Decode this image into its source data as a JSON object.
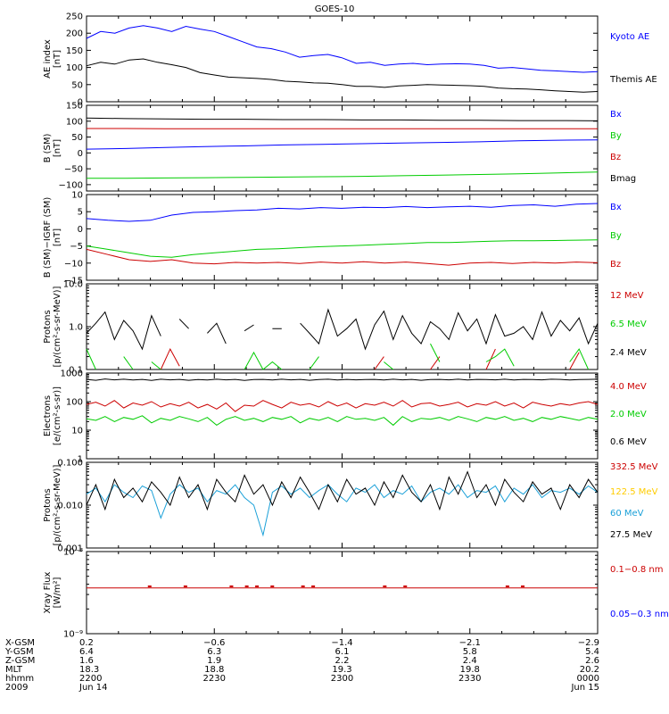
{
  "title": "GOES-10",
  "chart_data": [
    {
      "type": "line",
      "ylabel": [
        "AE index",
        "[nT]"
      ],
      "ylim": [
        0,
        250
      ],
      "yscale": "linear",
      "yticks": [
        0,
        50,
        100,
        150,
        200,
        250
      ],
      "ytick_labels": [
        "0",
        "50",
        "100",
        "150",
        "200",
        "250"
      ],
      "series": [
        {
          "name": "Kyoto AE",
          "color": "#0000ff",
          "values": [
            185,
            205,
            200,
            215,
            222,
            215,
            205,
            220,
            212,
            205,
            190,
            175,
            160,
            155,
            145,
            130,
            135,
            138,
            128,
            112,
            115,
            106,
            110,
            112,
            108,
            110,
            111,
            110,
            106,
            98,
            100,
            96,
            92,
            90,
            88,
            86,
            88
          ]
        },
        {
          "name": "Themis AE",
          "color": "#000000",
          "values": [
            105,
            115,
            110,
            122,
            125,
            115,
            108,
            100,
            85,
            78,
            72,
            70,
            68,
            65,
            60,
            58,
            55,
            54,
            50,
            45,
            45,
            42,
            46,
            48,
            50,
            49,
            48,
            47,
            45,
            40,
            38,
            37,
            35,
            32,
            30,
            28,
            30
          ]
        }
      ]
    },
    {
      "type": "line",
      "ylabel": [
        "B (SM)",
        "[nT]"
      ],
      "ylim": [
        -120,
        150
      ],
      "yscale": "linear",
      "yticks": [
        -100,
        -50,
        0,
        50,
        100,
        150
      ],
      "ytick_labels": [
        "−100",
        "−50",
        "0",
        "50",
        "100",
        "150"
      ],
      "series": [
        {
          "name": "Bx",
          "color": "#0000ff",
          "values": [
            12,
            14,
            17,
            20,
            22,
            25,
            27,
            29,
            31,
            33,
            35,
            38,
            40,
            41
          ]
        },
        {
          "name": "By",
          "color": "#00cc00",
          "values": [
            -80,
            -80,
            -79,
            -78,
            -77,
            -76,
            -75,
            -74,
            -72,
            -70,
            -68,
            -66,
            -63,
            -60
          ]
        },
        {
          "name": "Bz",
          "color": "#cc0000",
          "values": [
            77,
            77,
            76,
            76,
            76,
            76,
            76,
            76,
            76,
            76,
            76,
            76,
            76,
            76
          ]
        },
        {
          "name": "Bmag",
          "color": "#000000",
          "values": [
            110,
            108,
            107,
            106,
            106,
            105,
            105,
            104,
            104,
            103,
            103,
            102,
            102,
            101
          ]
        }
      ]
    },
    {
      "type": "line",
      "ylabel": [
        "B (SM)−IGRF (SM)",
        "[nT]"
      ],
      "ylim": [
        -15,
        10
      ],
      "yscale": "linear",
      "yticks": [
        -15,
        -10,
        -5,
        0,
        5,
        10
      ],
      "ytick_labels": [
        "−15",
        "−10",
        "−5",
        "0",
        "5",
        "10"
      ],
      "series": [
        {
          "name": "Bx",
          "color": "#0000ff",
          "values": [
            3,
            2.5,
            2.2,
            2.5,
            4,
            4.8,
            5,
            5.3,
            5.5,
            6,
            5.8,
            6.2,
            6,
            6.3,
            6.2,
            6.5,
            6.2,
            6.4,
            6.6,
            6.3,
            6.8,
            7,
            6.6,
            7.2,
            7.4
          ]
        },
        {
          "name": "By",
          "color": "#00cc00",
          "values": [
            -5,
            -6,
            -7,
            -8,
            -8.3,
            -7.5,
            -7,
            -6.5,
            -6,
            -5.8,
            -5.5,
            -5.2,
            -5,
            -4.8,
            -4.5,
            -4.3,
            -4,
            -4,
            -3.8,
            -3.6,
            -3.5,
            -3.5,
            -3.4,
            -3.3,
            -3.2
          ]
        },
        {
          "name": "Bz",
          "color": "#cc0000",
          "values": [
            -6,
            -7.5,
            -9,
            -9.5,
            -9,
            -10,
            -10.2,
            -9.8,
            -10,
            -9.8,
            -10.1,
            -9.7,
            -10,
            -9.6,
            -10,
            -9.7,
            -10.1,
            -10.6,
            -10,
            -9.8,
            -10.1,
            -9.8,
            -10,
            -9.7,
            -9.9
          ]
        }
      ]
    },
    {
      "type": "line",
      "ylabel": [
        "Protons",
        "[p/(cm²-s-sr-MeV)]"
      ],
      "ylim": [
        0.1,
        10
      ],
      "yscale": "log",
      "yticks": [
        0.1,
        1,
        10
      ],
      "ytick_labels": [
        "0.1",
        "1.0",
        "10.0"
      ],
      "series": [
        {
          "name": "12 MeV",
          "color": "#cc0000",
          "values": [
            null,
            null,
            null,
            null,
            null,
            null,
            null,
            null,
            0.1,
            0.3,
            0.12,
            null,
            null,
            null,
            null,
            null,
            null,
            null,
            null,
            null,
            null,
            null,
            null,
            null,
            null,
            null,
            null,
            null,
            null,
            null,
            null,
            0.1,
            0.2,
            null,
            null,
            null,
            null,
            0.1,
            0.2,
            null,
            null,
            null,
            null,
            0.1,
            0.3,
            null,
            null,
            null,
            null,
            null,
            null,
            null,
            0.1,
            0.25,
            null,
            null
          ]
        },
        {
          "name": "6.5 MeV",
          "color": "#00cc00",
          "values": [
            0.3,
            0.1,
            null,
            null,
            0.2,
            0.1,
            null,
            0.15,
            0.1,
            null,
            null,
            null,
            null,
            null,
            null,
            null,
            null,
            0.1,
            0.25,
            0.1,
            0.15,
            0.1,
            null,
            null,
            0.1,
            0.2,
            null,
            null,
            null,
            null,
            null,
            null,
            0.15,
            0.1,
            null,
            null,
            null,
            0.4,
            0.15,
            null,
            null,
            null,
            null,
            0.15,
            0.2,
            0.3,
            0.12,
            null,
            null,
            null,
            null,
            null,
            0.15,
            0.3,
            0.1,
            null
          ]
        },
        {
          "name": "2.4 MeV",
          "color": "#000000",
          "values": [
            0.7,
            1.2,
            2.2,
            0.5,
            1.4,
            0.8,
            0.3,
            1.8,
            0.6,
            null,
            1.5,
            0.9,
            null,
            0.7,
            1.2,
            0.4,
            null,
            0.8,
            1.1,
            null,
            0.9,
            0.9,
            null,
            1.2,
            0.7,
            0.4,
            2.5,
            0.6,
            0.9,
            1.5,
            0.3,
            1.1,
            2.3,
            0.5,
            1.8,
            0.7,
            0.4,
            1.3,
            0.9,
            0.5,
            2.1,
            0.8,
            1.5,
            0.4,
            1.9,
            0.6,
            0.7,
            1.0,
            0.5,
            2.2,
            0.6,
            1.4,
            0.8,
            1.6,
            0.4,
            1.2
          ]
        }
      ]
    },
    {
      "type": "line",
      "ylabel": [
        "Electrons",
        "[e/(cm²-s-sr)]"
      ],
      "ylim": [
        1,
        1000
      ],
      "yscale": "log",
      "yticks": [
        1,
        10,
        100,
        1000
      ],
      "ytick_labels": [
        "1",
        "10",
        "100",
        "1000"
      ],
      "series": [
        {
          "name": "4.0 MeV",
          "color": "#cc0000",
          "values": [
            80,
            95,
            70,
            110,
            60,
            90,
            75,
            100,
            65,
            85,
            70,
            95,
            60,
            80,
            55,
            90,
            45,
            75,
            70,
            110,
            80,
            60,
            95,
            75,
            85,
            65,
            100,
            70,
            90,
            60,
            85,
            75,
            95,
            70,
            110,
            65,
            85,
            90,
            70,
            80,
            95,
            65,
            85,
            75,
            100,
            70,
            90,
            60,
            95,
            80,
            70,
            85,
            75,
            90,
            100,
            80
          ]
        },
        {
          "name": "2.0 MeV",
          "color": "#00cc00",
          "values": [
            25,
            22,
            30,
            20,
            28,
            24,
            32,
            18,
            26,
            22,
            30,
            25,
            20,
            28,
            15,
            24,
            30,
            22,
            26,
            20,
            28,
            24,
            30,
            18,
            26,
            22,
            28,
            20,
            30,
            24,
            26,
            22,
            28,
            15,
            30,
            20,
            26,
            24,
            28,
            22,
            30,
            25,
            20,
            28,
            24,
            30,
            22,
            26,
            20,
            28,
            24,
            30,
            26,
            22,
            28,
            24
          ]
        },
        {
          "name": "0.6 MeV",
          "color": "#000000",
          "values": [
            600,
            560,
            620,
            580,
            610,
            570,
            600,
            550,
            610,
            580,
            600,
            560,
            590,
            570,
            610,
            580,
            600,
            550,
            590,
            600,
            570,
            610,
            580,
            600,
            560,
            590,
            610,
            570,
            600,
            580,
            590,
            600,
            570,
            610,
            580,
            600,
            560,
            590,
            600,
            580,
            610,
            570,
            600,
            590,
            580,
            610,
            570,
            600,
            590,
            580,
            610,
            600,
            570,
            590,
            600,
            610
          ]
        }
      ]
    },
    {
      "type": "line",
      "ylabel": [
        "Protons",
        "[p/(cm²-s-sr-MeV)]"
      ],
      "ylim": [
        0.001,
        0.1
      ],
      "yscale": "log",
      "yticks": [
        0.001,
        0.01,
        0.1
      ],
      "ytick_labels": [
        "0.001",
        "0.010",
        "0.100"
      ],
      "series": [
        {
          "name": "332.5 MeV",
          "color": "#cc0000",
          "values": []
        },
        {
          "name": "122.5 MeV",
          "color": "#ffcc00",
          "values": []
        },
        {
          "name": "60 MeV",
          "color": "#1aa0d8",
          "values": [
            0.018,
            0.025,
            0.012,
            0.03,
            0.02,
            0.015,
            0.028,
            0.022,
            0.005,
            0.018,
            0.03,
            0.02,
            0.025,
            0.012,
            0.022,
            0.018,
            0.03,
            0.015,
            0.01,
            0.002,
            0.02,
            0.028,
            0.018,
            0.025,
            0.015,
            0.022,
            0.03,
            0.018,
            0.012,
            0.025,
            0.02,
            0.03,
            0.015,
            0.022,
            0.018,
            0.028,
            0.012,
            0.02,
            0.025,
            0.018,
            0.03,
            0.015,
            0.022,
            0.02,
            0.028,
            0.012,
            0.025,
            0.018,
            0.03,
            0.015,
            0.022,
            0.02,
            0.025,
            0.018,
            0.028,
            0.02
          ]
        },
        {
          "name": "27.5 MeV",
          "color": "#000000",
          "values": [
            0.01,
            0.03,
            0.008,
            0.04,
            0.015,
            0.025,
            0.012,
            0.035,
            0.02,
            0.01,
            0.045,
            0.015,
            0.03,
            0.008,
            0.04,
            0.02,
            0.012,
            0.05,
            0.018,
            0.03,
            0.01,
            0.035,
            0.015,
            0.045,
            0.02,
            0.008,
            0.03,
            0.012,
            0.04,
            0.018,
            0.025,
            0.01,
            0.035,
            0.015,
            0.05,
            0.02,
            0.012,
            0.03,
            0.008,
            0.045,
            0.018,
            0.06,
            0.015,
            0.03,
            0.01,
            0.04,
            0.02,
            0.012,
            0.035,
            0.018,
            0.025,
            0.008,
            0.03,
            0.015,
            0.04,
            0.02
          ]
        }
      ]
    },
    {
      "type": "line",
      "ylabel": [
        "Xray Flux",
        "[W/m²]"
      ],
      "ylim": [
        1e-09,
        1e-08
      ],
      "yscale": "log",
      "yticks": [
        1e-09,
        1e-08
      ],
      "ytick_labels": [
        "10⁻⁹",
        "10⁻⁸"
      ],
      "series": [
        {
          "name": "0.1−0.8 nm",
          "color": "#cc0000",
          "values": [
            3.6e-09,
            3.6e-09,
            3.6e-09,
            3.6e-09,
            3.6e-09,
            3.6e-09,
            3.6e-09,
            3.6e-09,
            3.6e-09,
            3.6e-09,
            3.6e-09,
            3.6e-09,
            3.6e-09,
            3.6e-09,
            3.6e-09,
            3.6e-09,
            3.6e-09,
            3.6e-09,
            3.6e-09,
            3.6e-09,
            3.6e-09,
            3.6e-09,
            3.6e-09,
            3.6e-09,
            3.6e-09,
            3.6e-09,
            3.6e-09,
            3.6e-09,
            3.6e-09,
            3.6e-09
          ]
        },
        {
          "name": "0.05−0.3 nm",
          "color": "#0000ff",
          "values": []
        }
      ]
    }
  ],
  "footer": {
    "row_labels": [
      "X-GSM",
      "Y-GSM",
      "Z-GSM",
      "MLT",
      "hhmm",
      "2009"
    ],
    "columns": [
      [
        "0.2",
        "6.4",
        "1.6",
        "18.3",
        "2200",
        "Jun 14"
      ],
      [
        "−0.6",
        "6.3",
        "1.9",
        "18.8",
        "2230",
        ""
      ],
      [
        "−1.4",
        "6.1",
        "2.2",
        "19.3",
        "2300",
        ""
      ],
      [
        "−2.1",
        "5.8",
        "2.4",
        "19.8",
        "2330",
        ""
      ],
      [
        "−2.9",
        "5.4",
        "2.6",
        "20.2",
        "0000",
        "Jun 15"
      ]
    ]
  }
}
